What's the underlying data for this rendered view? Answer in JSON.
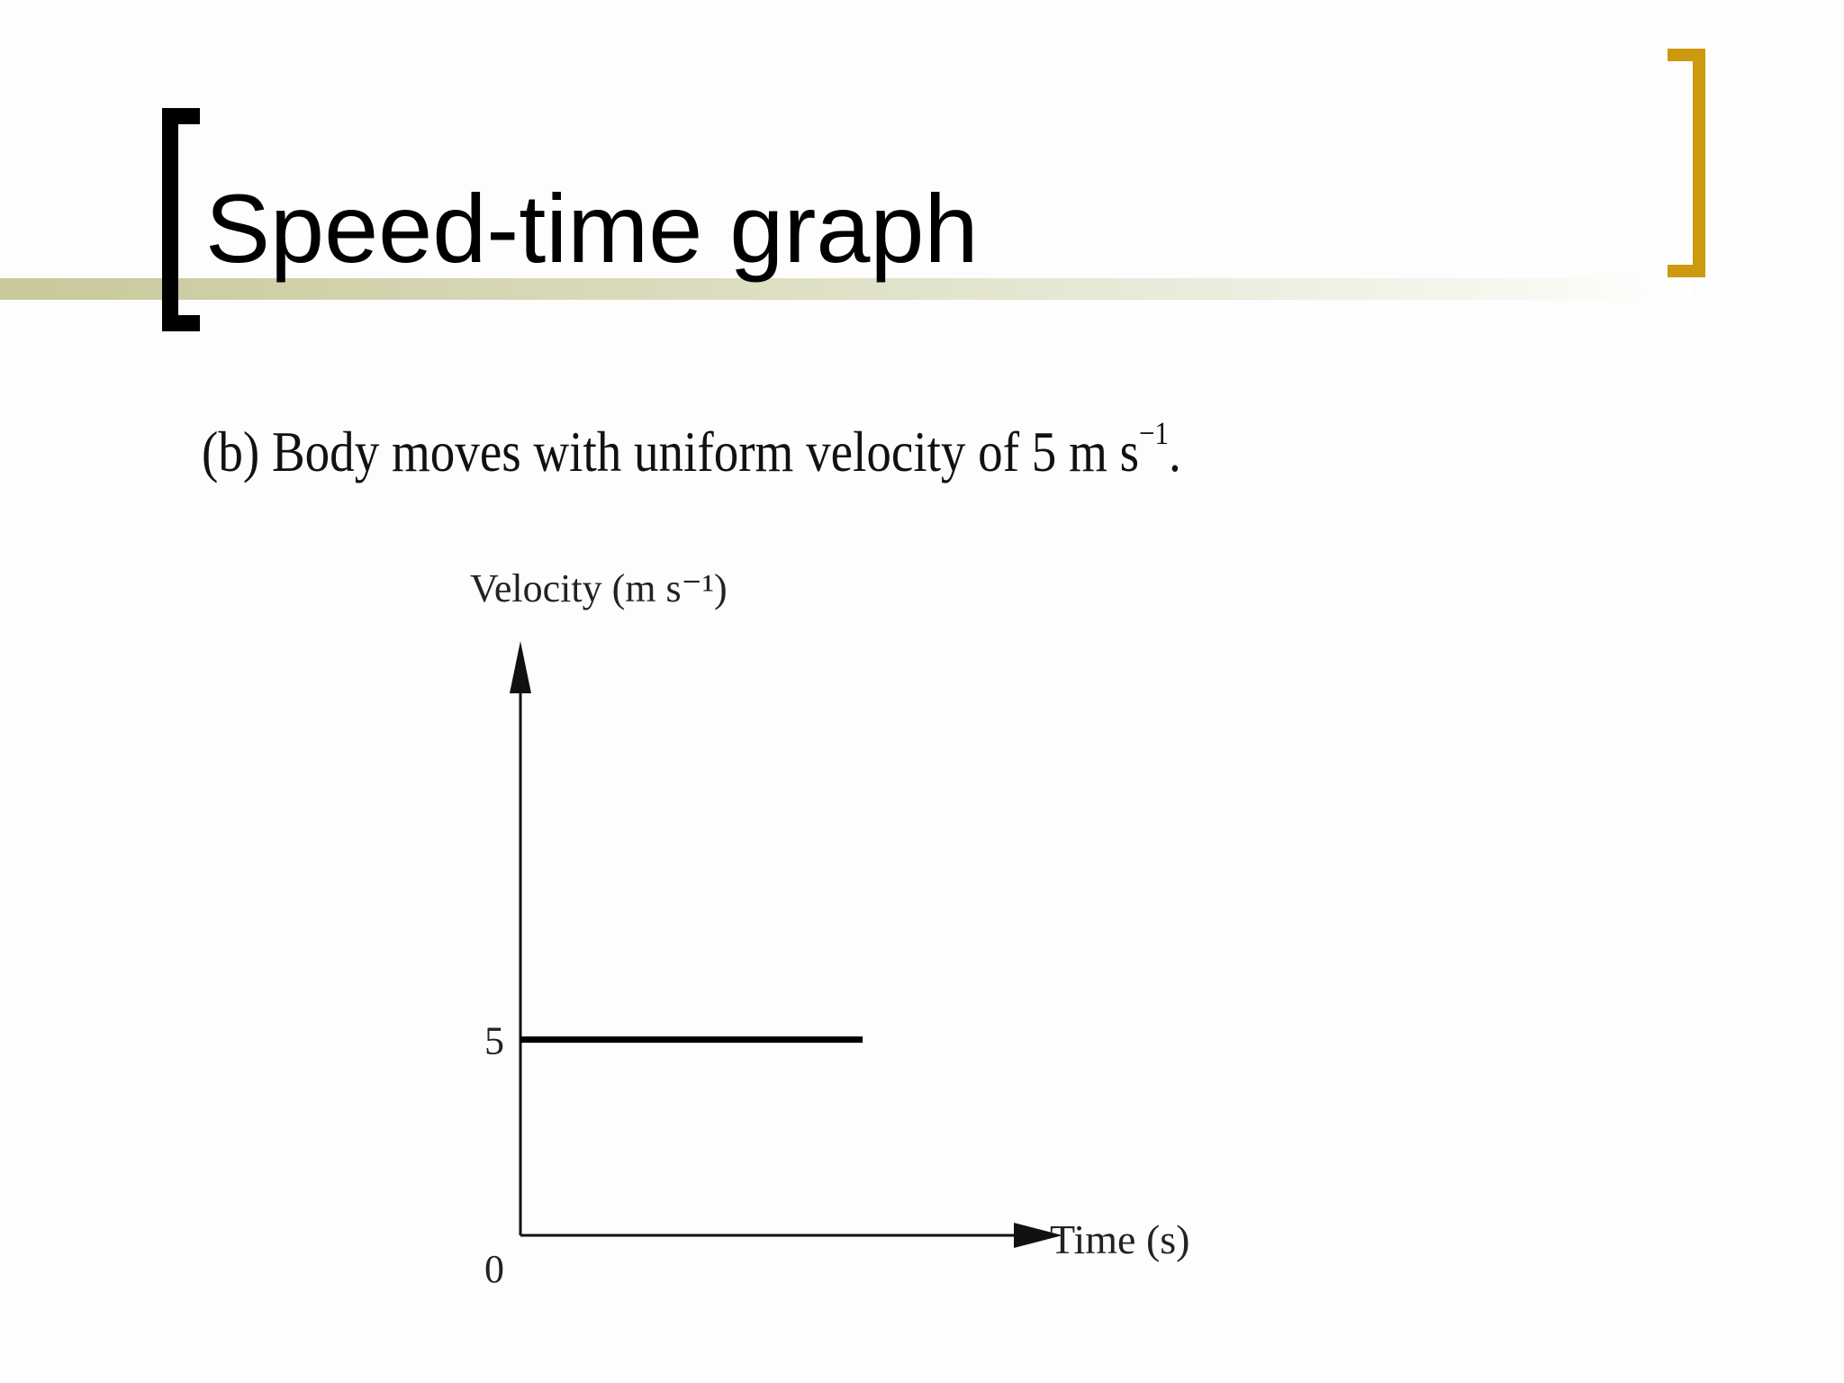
{
  "slide": {
    "title": "Speed-time graph",
    "subtitle_main": "(b)  Body moves with uniform velocity of 5 m s",
    "subtitle_sup": "−1",
    "subtitle_end": ".",
    "colors": {
      "title": "#000000",
      "left_bracket": "#000000",
      "right_bracket": "#cc9a0e",
      "accent_band": "#c8c89a"
    }
  },
  "chart_data": {
    "type": "line",
    "title": "",
    "xlabel": "Time (s)",
    "ylabel": "Velocity (m s⁻¹)",
    "y_ticks": [
      {
        "value": 0,
        "label": "0"
      },
      {
        "value": 5,
        "label": "5"
      }
    ],
    "ylim": [
      0,
      15
    ],
    "xlim": [
      0,
      10
    ],
    "grid": false,
    "series": [
      {
        "x": [
          0,
          7
        ],
        "y": [
          5,
          5
        ]
      }
    ]
  }
}
